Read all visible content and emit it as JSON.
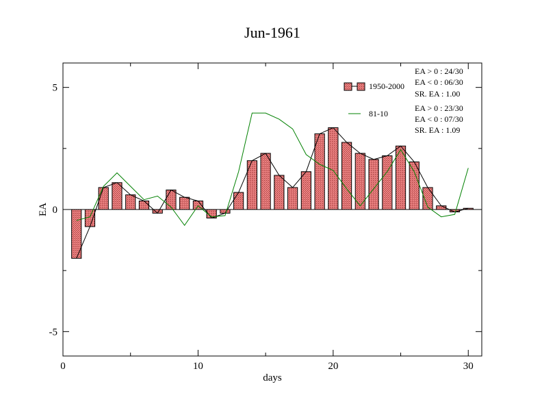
{
  "chart_data": {
    "type": "bar",
    "title": "Jun-1961",
    "xlabel": "days",
    "ylabel": "EA",
    "xlim": [
      0,
      31
    ],
    "ylim": [
      -6,
      6
    ],
    "x_ticks": [
      0,
      10,
      20,
      30
    ],
    "y_ticks": [
      -5,
      0,
      5
    ],
    "grid": false,
    "legend_position": "top-right",
    "series": [
      {
        "name": "1950-2000",
        "style": "bar-with-line",
        "bar_color": "#e06666",
        "line_color": "#000000",
        "x": [
          1,
          2,
          3,
          4,
          5,
          6,
          7,
          8,
          9,
          10,
          11,
          12,
          13,
          14,
          15,
          16,
          17,
          18,
          19,
          20,
          21,
          22,
          23,
          24,
          25,
          26,
          27,
          28,
          29,
          30
        ],
        "values": [
          -2.0,
          -0.7,
          0.9,
          1.1,
          0.6,
          0.35,
          -0.15,
          0.8,
          0.5,
          0.35,
          -0.35,
          -0.15,
          0.7,
          2.0,
          2.3,
          1.4,
          0.9,
          1.55,
          3.1,
          3.35,
          2.75,
          2.3,
          2.05,
          2.2,
          2.6,
          1.95,
          0.9,
          0.15,
          -0.1,
          0.05
        ]
      },
      {
        "name": "81-10",
        "style": "line",
        "line_color": "#008000",
        "x": [
          1,
          2,
          3,
          4,
          5,
          6,
          7,
          8,
          9,
          10,
          11,
          12,
          13,
          14,
          15,
          16,
          17,
          18,
          19,
          20,
          21,
          22,
          23,
          24,
          25,
          26,
          27,
          28,
          29,
          30
        ],
        "values": [
          -0.45,
          -0.3,
          0.95,
          1.5,
          0.95,
          0.4,
          0.55,
          0.1,
          -0.65,
          0.15,
          -0.3,
          -0.25,
          1.55,
          3.95,
          3.95,
          3.7,
          3.3,
          2.25,
          1.85,
          1.6,
          0.85,
          0.15,
          0.85,
          1.55,
          2.45,
          1.55,
          0.1,
          -0.3,
          -0.2,
          1.7
        ]
      }
    ],
    "stats": {
      "1950-2000": [
        "EA > 0 : 24/30",
        "EA < 0 : 06/30",
        "SR. EA :  1.00"
      ],
      "81-10": [
        "EA > 0 : 23/30",
        "EA < 0 : 07/30",
        "SR. EA :  1.09"
      ]
    }
  }
}
